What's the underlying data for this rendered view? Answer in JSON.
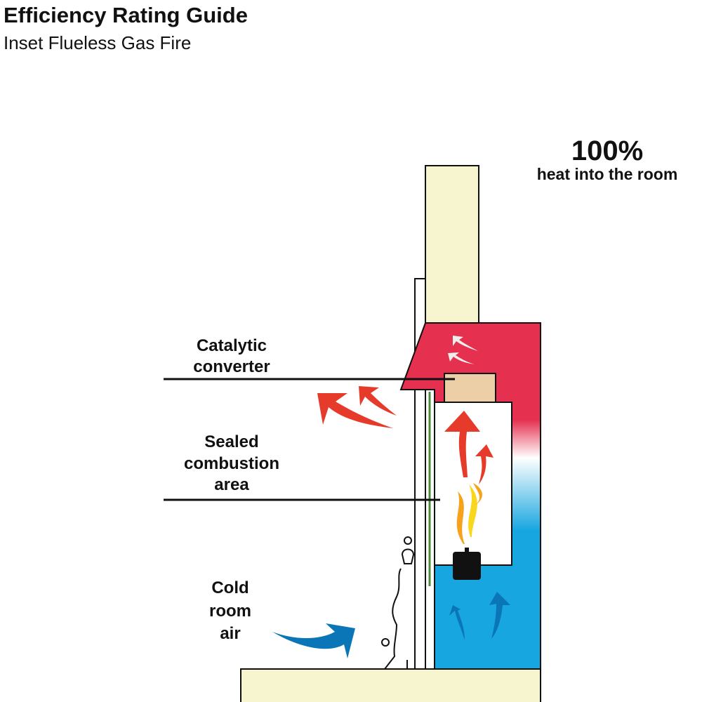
{
  "header": {
    "title": "Efficiency Rating Guide",
    "subtitle": "Inset Flueless Gas Fire"
  },
  "callout": {
    "value": "100%",
    "text": "heat into the room"
  },
  "labels": {
    "catalytic": [
      "Catalytic",
      "converter"
    ],
    "sealed": [
      "Sealed",
      "combustion",
      "area"
    ],
    "cold": [
      "Cold",
      "room",
      "air"
    ]
  },
  "colors": {
    "hot": "#e5304f",
    "cold": "#17a6df",
    "chimney": "#f6f5cf",
    "converter": "#eccfa6",
    "heat_arrow": "#e63b2a",
    "cold_arrow": "#0a76b7",
    "glass": "#4c8a3a"
  }
}
